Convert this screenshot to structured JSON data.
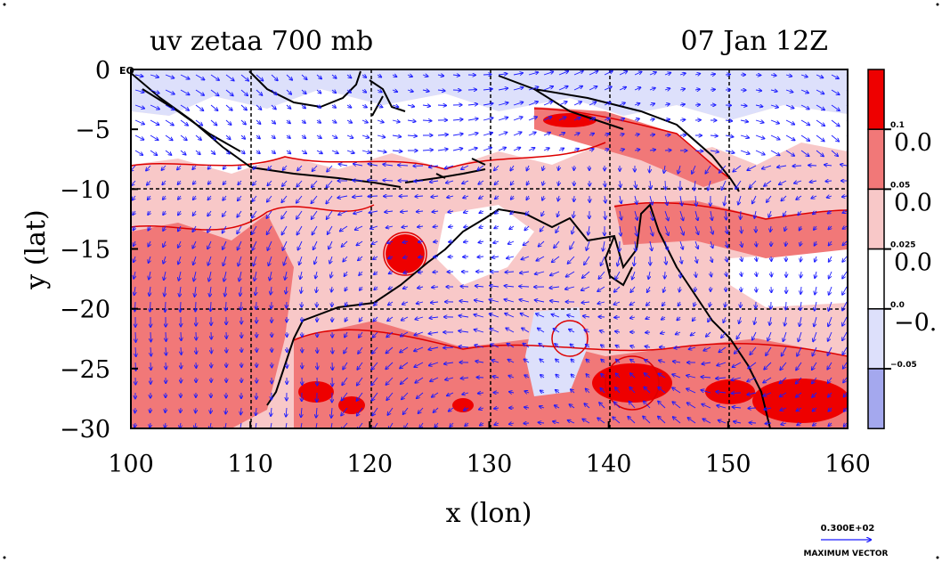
{
  "title": {
    "left": "uv zetaa 700 mb",
    "right": "07 Jan 12Z"
  },
  "eq_label": "EQ",
  "axes": {
    "xlabel": "x (lon)",
    "ylabel": "y (lat)",
    "xlim": [
      100,
      160
    ],
    "ylim": [
      -30,
      0
    ],
    "x_ticks": [
      "100",
      "110",
      "120",
      "130",
      "140",
      "150",
      "160"
    ],
    "y_ticks": [
      "0",
      "−5",
      "−10",
      "−15",
      "−20",
      "−25",
      "−30"
    ],
    "grid": true
  },
  "colorbar": {
    "colors": [
      "#ee0000",
      "#f17878",
      "#f8c8c8",
      "#ffffff",
      "#dde0fb",
      "#a4a8ee"
    ],
    "small_labels": [
      "0.1",
      "0.05",
      "0.025",
      "0.0",
      "−0.05"
    ],
    "large_labels": [
      "0.0",
      "0.0",
      "0.0",
      "−0."
    ]
  },
  "vector_key": {
    "value": "0.300E+02",
    "label": "MAXIMUM VECTOR"
  },
  "chart_data": {
    "type": "heatmap",
    "title": "uv zetaa 700 mb",
    "valid_time": "07 Jan 12Z",
    "xlabel": "x (lon)",
    "ylabel": "y (lat)",
    "xlim": [
      100,
      160
    ],
    "ylim": [
      -30,
      0
    ],
    "contour_levels": [
      -0.05,
      0.0,
      0.025,
      0.05,
      0.1
    ],
    "overlay": "wind vectors (u, v)",
    "max_vector": "0.300E+02"
  }
}
